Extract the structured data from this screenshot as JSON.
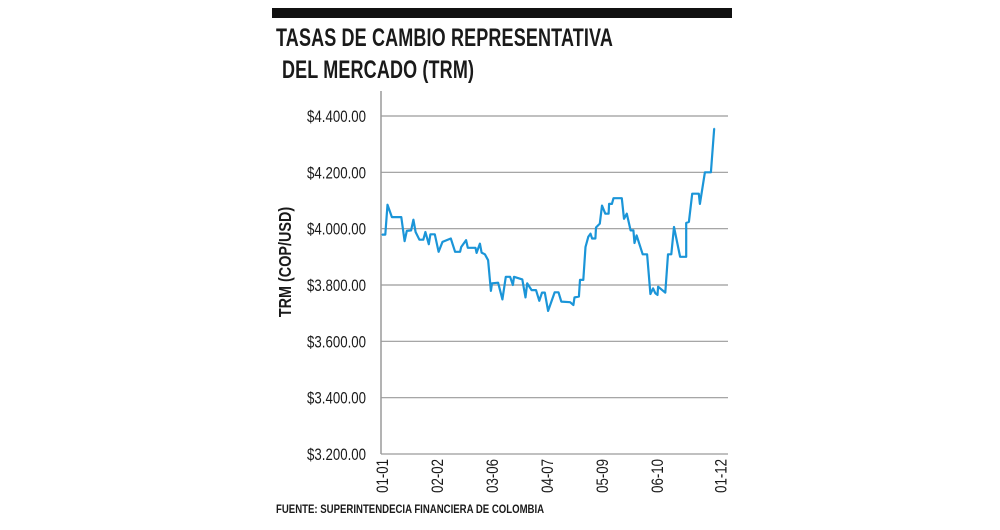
{
  "title_line1": "TASAS DE CAMBIO REPRESENTATIVA",
  "title_line2": "DEL MERCADO (TRM)",
  "source": "FUENTE: SUPERINTENDECIA FINANCIERA DE COLOMBIA",
  "chart_data": {
    "type": "line",
    "title": "TASAS DE CAMBIO REPRESENTATIVA DEL MERCADO (TRM)",
    "xlabel": "",
    "ylabel": "TRM (COP/USD)",
    "ylim": [
      3200,
      4400
    ],
    "yticks": [
      3200,
      3400,
      3600,
      3800,
      4000,
      4200,
      4400
    ],
    "ytick_labels": [
      "$3.200.00",
      "$3.400.00",
      "$3.600.00",
      "$3.800.00",
      "$4.000.00",
      "$4.200.00",
      "$4.400.00"
    ],
    "xtick_labels": [
      "01-01",
      "02-02",
      "03-06",
      "04-07",
      "05-09",
      "06-10",
      "01-12"
    ],
    "xtick_positions": [
      0,
      1,
      2,
      3,
      4,
      5,
      6.15
    ],
    "grid": "horizontal",
    "line_color": "#1b95d8",
    "x": [
      0,
      0.06,
      0.1,
      0.18,
      0.35,
      0.41,
      0.45,
      0.53,
      0.57,
      0.61,
      0.68,
      0.75,
      0.79,
      0.85,
      0.88,
      0.96,
      1.03,
      1.1,
      1.25,
      1.33,
      1.42,
      1.44,
      1.53,
      1.56,
      1.7,
      1.72,
      1.78,
      1.81,
      1.87,
      1.93,
      1.98,
      2.0,
      2.11,
      2.19,
      2.25,
      2.33,
      2.38,
      2.4,
      2.55,
      2.61,
      2.64,
      2.72,
      2.8,
      2.86,
      2.91,
      2.96,
      3.02,
      3.14,
      3.21,
      3.26,
      3.42,
      3.48,
      3.5,
      3.58,
      3.6,
      3.66,
      3.7,
      3.75,
      3.79,
      3.82,
      3.88,
      3.89,
      3.96,
      4.0,
      4.06,
      4.12,
      4.13,
      4.18,
      4.21,
      4.36,
      4.4,
      4.45,
      4.52,
      4.57,
      4.59,
      4.63,
      4.74,
      4.82,
      4.88,
      4.93,
      4.97,
      5.01,
      5.02,
      5.15,
      5.2,
      5.26,
      5.31,
      5.42,
      5.53,
      5.53,
      5.58,
      5.64,
      5.76,
      5.78,
      5.87,
      5.98,
      6.04
    ],
    "y": [
      3979,
      3979,
      4085,
      4041,
      4041,
      3956,
      3992,
      3994,
      4032,
      3988,
      3961,
      3961,
      3988,
      3945,
      3980,
      3980,
      3918,
      3953,
      3965,
      3918,
      3918,
      3935,
      3959,
      3932,
      3932,
      3914,
      3947,
      3915,
      3909,
      3888,
      3779,
      3806,
      3808,
      3749,
      3829,
      3829,
      3800,
      3829,
      3820,
      3756,
      3806,
      3782,
      3782,
      3744,
      3773,
      3773,
      3708,
      3774,
      3774,
      3741,
      3739,
      3729,
      3756,
      3759,
      3818,
      3818,
      3935,
      3971,
      3982,
      3965,
      3965,
      4004,
      4018,
      4082,
      4053,
      4053,
      4088,
      4088,
      4108,
      4108,
      4035,
      4053,
      3994,
      3994,
      3949,
      3976,
      3909,
      3909,
      3768,
      3788,
      3771,
      3765,
      3794,
      3773,
      3909,
      3909,
      4006,
      3900,
      3900,
      4020,
      4024,
      4124,
      4124,
      4088,
      4200,
      4200,
      4356
    ]
  }
}
